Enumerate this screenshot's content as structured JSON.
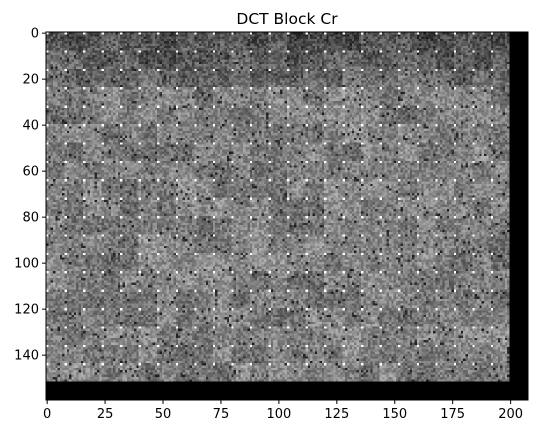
{
  "chart_data": {
    "type": "heatmap",
    "title": "DCT Block Cr",
    "xlabel": "",
    "ylabel": "",
    "colormap": "gray",
    "grid": false,
    "xlim": [
      -0.5,
      207.5
    ],
    "ylim": [
      159.5,
      -0.5
    ],
    "image_shape": [
      160,
      208
    ],
    "content_extent": {
      "rows": [
        0,
        152
      ],
      "cols": [
        0,
        200
      ]
    },
    "padding_value": "black",
    "block_size": 8,
    "x_ticks": [
      0,
      25,
      50,
      75,
      100,
      125,
      150,
      175,
      200
    ],
    "y_ticks": [
      0,
      20,
      40,
      60,
      80,
      100,
      120,
      140
    ],
    "x_tick_labels": [
      "0",
      "25",
      "50",
      "75",
      "100",
      "125",
      "150",
      "175",
      "200"
    ],
    "y_tick_labels": [
      "0",
      "20",
      "40",
      "60",
      "80",
      "100",
      "120",
      "140"
    ]
  }
}
